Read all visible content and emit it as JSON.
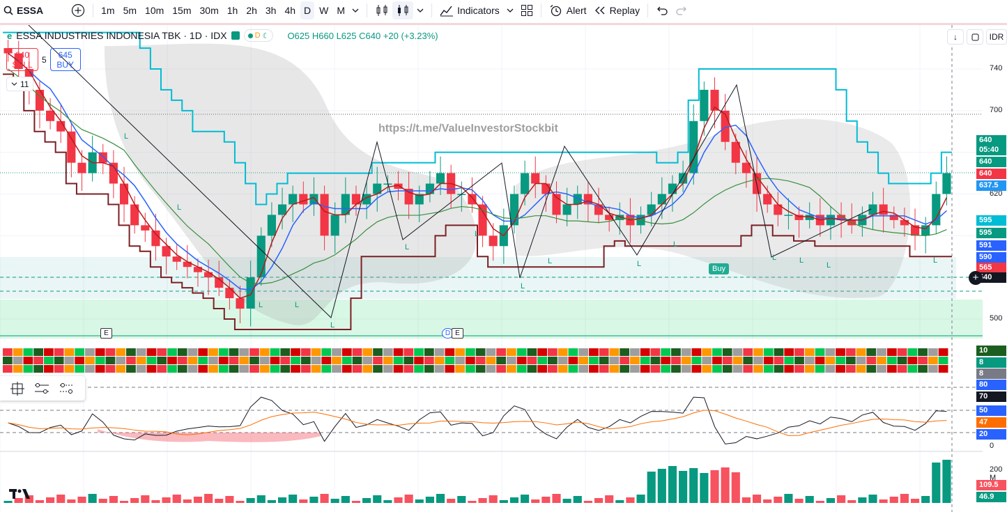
{
  "toolbar": {
    "symbol": "ESSA",
    "intervals": [
      "1m",
      "5m",
      "10m",
      "15m",
      "30m",
      "1h",
      "2h",
      "3h",
      "4h",
      "D",
      "W",
      "M"
    ],
    "active_interval": "D",
    "indicators_label": "Indicators",
    "alert_label": "Alert",
    "replay_label": "Replay"
  },
  "legend": {
    "title": "ESSA INDUSTRIES INDONESIA TBK · 1D · IDX",
    "pill_letter": "D",
    "open": "O625",
    "high": "H660",
    "low": "L625",
    "close": "C640",
    "change": "+20 (+3.23%)"
  },
  "trade": {
    "sell_price": "640",
    "sell_label": "SELL",
    "spread": "5",
    "buy_price": "645",
    "buy_label": "BUY"
  },
  "collapse_count": "11",
  "currency": "IDR",
  "watermark": "https://t.me/ValueInvestorStockbit",
  "buy_tag": "Buy",
  "markers": {
    "e1": "E",
    "d": "D",
    "e2": "E"
  },
  "price_axis": [
    {
      "label": "740",
      "value": 740
    },
    {
      "label": "700",
      "value": 700
    },
    {
      "label": "620",
      "value": 620
    },
    {
      "label": "500",
      "value": 500
    }
  ],
  "price_labels": [
    {
      "text": "640",
      "color": "#089981"
    },
    {
      "text": "05:40",
      "color": "#089981"
    },
    {
      "text": "640",
      "color": "#089981"
    },
    {
      "text": "640",
      "color": "#f23645"
    },
    {
      "text": "637.5",
      "color": "#2196f3"
    },
    {
      "text": "595",
      "color": "#00bcd4"
    },
    {
      "text": "595",
      "color": "#089981"
    },
    {
      "text": "591",
      "color": "#2962ff"
    },
    {
      "text": "590",
      "color": "#2962ff"
    },
    {
      "text": "565",
      "color": "#f23645"
    },
    {
      "text": "540",
      "color": "#131722"
    }
  ],
  "heatmap_labels": [
    {
      "text": "10",
      "color": "#1b5e20"
    },
    {
      "text": "8",
      "color": "#089981"
    },
    {
      "text": "8",
      "color": "#787b86"
    }
  ],
  "osc_axis": [
    {
      "text": "80",
      "color": "#2962ff",
      "box": true
    },
    {
      "text": "70",
      "color": "#131722",
      "box": true
    },
    {
      "text": "50",
      "color": "#2962ff",
      "box": true
    },
    {
      "text": "47",
      "color": "#ff6d00",
      "box": true
    },
    {
      "text": "20",
      "color": "#2962ff",
      "box": true
    },
    {
      "text": "0",
      "color": "",
      "box": false
    }
  ],
  "volume_axis": [
    {
      "text": "200 M",
      "color": "",
      "box": false
    },
    {
      "text": "109.5",
      "color": "#f7525f",
      "box": true
    },
    {
      "text": "46.9",
      "color": "#089981",
      "box": true
    }
  ],
  "chart_data": {
    "type": "candlestick",
    "symbol": "ESSA",
    "interval": "1D",
    "last": {
      "open": 625,
      "high": 660,
      "low": 625,
      "close": 640
    },
    "closes": [
      755,
      740,
      720,
      700,
      690,
      680,
      650,
      640,
      660,
      650,
      630,
      610,
      590,
      585,
      570,
      560,
      555,
      550,
      545,
      540,
      530,
      520,
      510,
      540,
      580,
      600,
      610,
      620,
      610,
      620,
      580,
      600,
      620,
      610,
      620,
      630,
      630,
      625,
      610,
      620,
      630,
      640,
      620,
      620,
      610,
      580,
      570,
      590,
      620,
      640,
      630,
      620,
      600,
      610,
      620,
      610,
      600,
      595,
      600,
      590,
      600,
      610,
      620,
      630,
      640,
      690,
      720,
      700,
      670,
      650,
      640,
      620,
      610,
      600,
      600,
      595,
      600,
      590,
      600,
      595,
      590,
      600,
      610,
      600,
      595,
      590,
      580,
      590,
      620,
      640
    ],
    "volume_axis_max_label": "200 M"
  }
}
